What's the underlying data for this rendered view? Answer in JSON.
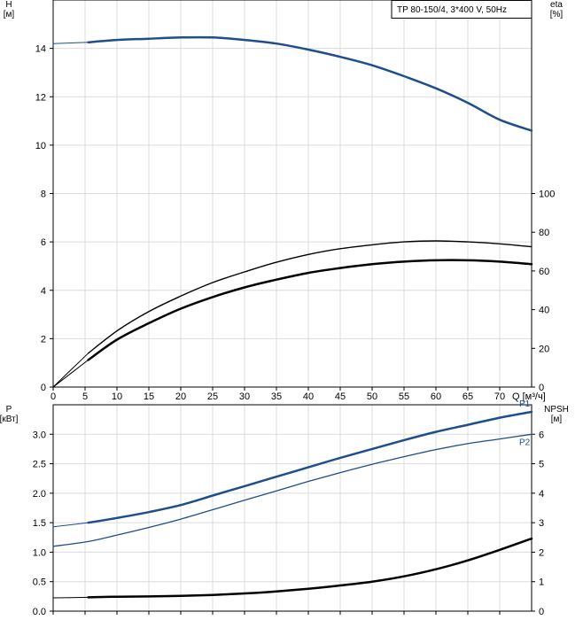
{
  "chart_data": [
    {
      "type": "line",
      "title": "TP 80-150/4, 3*400 V, 50Hz",
      "xlabel": "Q [м³/ч]",
      "ylabel_left": [
        "H",
        "[м]"
      ],
      "ylabel_right": [
        "eta",
        "[%]"
      ],
      "x_ticks": [
        0,
        5,
        10,
        15,
        20,
        25,
        30,
        35,
        40,
        45,
        50,
        55,
        60,
        65,
        70
      ],
      "xlim": [
        0,
        75
      ],
      "left_ticks": [
        0,
        2,
        4,
        6,
        8,
        10,
        12,
        14
      ],
      "left_ylim": [
        0,
        16
      ],
      "right_ticks": [
        0,
        20,
        40,
        60,
        80,
        100
      ],
      "right_ylim": [
        0,
        200
      ],
      "grid": true,
      "series": [
        {
          "axis": "left",
          "color": "#1f4e8c",
          "width": 2.5,
          "points": [
            [
              0,
              14.2
            ],
            [
              5.5,
              14.25
            ],
            [
              10,
              14.35
            ],
            [
              15,
              14.4
            ],
            [
              20,
              14.45
            ],
            [
              25,
              14.45
            ],
            [
              30,
              14.35
            ],
            [
              35,
              14.2
            ],
            [
              40,
              13.95
            ],
            [
              45,
              13.65
            ],
            [
              50,
              13.3
            ],
            [
              55,
              12.85
            ],
            [
              60,
              12.35
            ],
            [
              65,
              11.75
            ],
            [
              70,
              11.05
            ],
            [
              75,
              10.6
            ]
          ],
          "thin_from": 0,
          "thin_to": 5.5
        },
        {
          "axis": "right",
          "color": "#000000",
          "width": 1.4,
          "points": [
            [
              0,
              0
            ],
            [
              5.5,
              17.5
            ],
            [
              10,
              29
            ],
            [
              15,
              39
            ],
            [
              20,
              47
            ],
            [
              25,
              54
            ],
            [
              30,
              59.5
            ],
            [
              35,
              64.5
            ],
            [
              40,
              68.5
            ],
            [
              45,
              71.5
            ],
            [
              50,
              73.5
            ],
            [
              55,
              75
            ],
            [
              60,
              75.5
            ],
            [
              65,
              75
            ],
            [
              70,
              74
            ],
            [
              75,
              72.5
            ]
          ],
          "thin_from": 0,
          "thin_to": 5.5
        },
        {
          "axis": "right",
          "color": "#000000",
          "width": 2.5,
          "points": [
            [
              0,
              0
            ],
            [
              5.5,
              14
            ],
            [
              10,
              24.5
            ],
            [
              15,
              33
            ],
            [
              20,
              40.5
            ],
            [
              25,
              46.5
            ],
            [
              30,
              51.5
            ],
            [
              35,
              55.5
            ],
            [
              40,
              59
            ],
            [
              45,
              61.5
            ],
            [
              50,
              63.5
            ],
            [
              55,
              64.8
            ],
            [
              60,
              65.5
            ],
            [
              65,
              65.5
            ],
            [
              70,
              64.8
            ],
            [
              75,
              63.5
            ]
          ],
          "thin_from": 0,
          "thin_to": 5.5
        }
      ]
    },
    {
      "type": "line",
      "xlabel": "",
      "ylabel_left": [
        "P",
        "[кВт]"
      ],
      "ylabel_right": [
        "NPSH",
        "[м]"
      ],
      "xlim": [
        0,
        75
      ],
      "x_ticks": [
        0,
        5,
        10,
        15,
        20,
        25,
        30,
        35,
        40,
        45,
        50,
        55,
        60,
        65,
        70
      ],
      "left_ticks": [
        0.0,
        0.5,
        1.0,
        1.5,
        2.0,
        2.5,
        3.0
      ],
      "left_tick_labels": [
        "0.0",
        "0.5",
        "1.0",
        "1.5",
        "2.0",
        "2.5",
        "3.0"
      ],
      "left_ylim": [
        0,
        3.5
      ],
      "right_ticks": [
        0,
        1,
        2,
        3,
        4,
        5,
        6
      ],
      "right_ylim": [
        0,
        7
      ],
      "grid": true,
      "series": [
        {
          "name": "P1",
          "axis": "left",
          "color": "#1f4e8c",
          "width": 2.5,
          "points": [
            [
              0,
              1.43
            ],
            [
              5.5,
              1.5
            ],
            [
              10,
              1.58
            ],
            [
              15,
              1.68
            ],
            [
              20,
              1.8
            ],
            [
              25,
              1.96
            ],
            [
              30,
              2.12
            ],
            [
              35,
              2.28
            ],
            [
              40,
              2.44
            ],
            [
              45,
              2.6
            ],
            [
              50,
              2.75
            ],
            [
              55,
              2.9
            ],
            [
              60,
              3.04
            ],
            [
              65,
              3.16
            ],
            [
              70,
              3.28
            ],
            [
              75,
              3.38
            ]
          ],
          "thin_from": 0,
          "thin_to": 5.5
        },
        {
          "name": "P2",
          "axis": "left",
          "color": "#1f4e8c",
          "width": 1.3,
          "points": [
            [
              0,
              1.1
            ],
            [
              5.5,
              1.18
            ],
            [
              10,
              1.29
            ],
            [
              15,
              1.42
            ],
            [
              20,
              1.56
            ],
            [
              25,
              1.72
            ],
            [
              30,
              1.88
            ],
            [
              35,
              2.04
            ],
            [
              40,
              2.2
            ],
            [
              45,
              2.35
            ],
            [
              50,
              2.49
            ],
            [
              55,
              2.62
            ],
            [
              60,
              2.74
            ],
            [
              65,
              2.84
            ],
            [
              70,
              2.92
            ],
            [
              75,
              3.0
            ]
          ],
          "thin_from": 0,
          "thin_to": 0
        },
        {
          "axis": "right",
          "color": "#000000",
          "width": 2.5,
          "points": [
            [
              0,
              0.45
            ],
            [
              5.5,
              0.47
            ],
            [
              10,
              0.49
            ],
            [
              15,
              0.5
            ],
            [
              20,
              0.52
            ],
            [
              25,
              0.55
            ],
            [
              30,
              0.6
            ],
            [
              35,
              0.67
            ],
            [
              40,
              0.76
            ],
            [
              45,
              0.87
            ],
            [
              50,
              1.0
            ],
            [
              55,
              1.18
            ],
            [
              60,
              1.42
            ],
            [
              65,
              1.72
            ],
            [
              70,
              2.08
            ],
            [
              75,
              2.46
            ]
          ],
          "thin_from": 0,
          "thin_to": 5.5
        }
      ]
    }
  ]
}
